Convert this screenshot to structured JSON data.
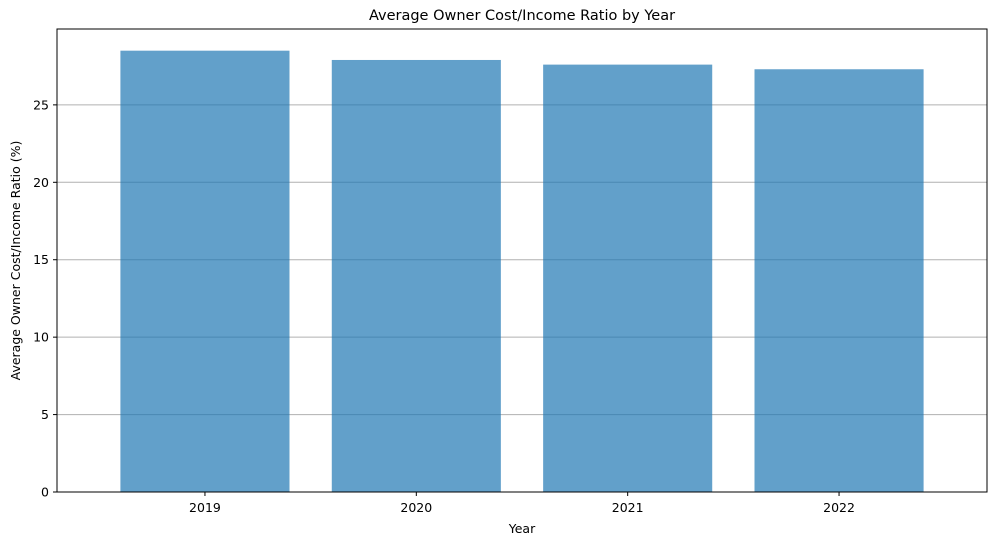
{
  "chart_data": {
    "type": "bar",
    "title": "Average Owner Cost/Income Ratio by Year",
    "xlabel": "Year",
    "ylabel": "Average Owner Cost/Income Ratio (%)",
    "categories": [
      "2019",
      "2020",
      "2021",
      "2022"
    ],
    "values": [
      28.5,
      27.9,
      27.6,
      27.3
    ],
    "ylim": [
      0,
      29.9
    ],
    "yticks": [
      0,
      5,
      10,
      15,
      20,
      25
    ],
    "ytick_labels": [
      "0",
      "5",
      "10",
      "15",
      "20",
      "25"
    ],
    "grid": "y-major",
    "bar_color": "#1f77b4",
    "bar_alpha": 0.7,
    "grid_color": "#b0b0b0"
  }
}
